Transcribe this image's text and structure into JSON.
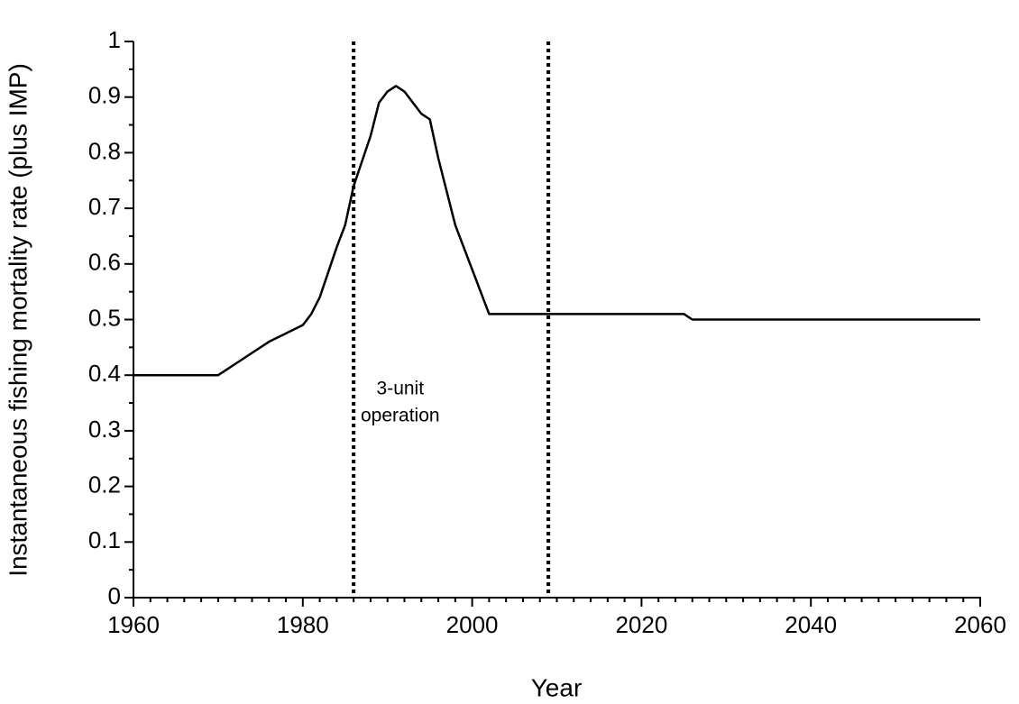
{
  "chart_data": {
    "type": "line",
    "xlabel": "Year",
    "ylabel": "Instantaneous fishing mortality rate (plus IMP)",
    "x": [
      1960,
      1970,
      1972,
      1976,
      1980,
      1981,
      1982,
      1984,
      1985,
      1986,
      1988,
      1989,
      1990,
      1991,
      1992,
      1994,
      1995,
      1996,
      1998,
      2000,
      2002,
      2010,
      2025,
      2026,
      2060
    ],
    "series": [
      {
        "color": "#000000",
        "values": [
          0.4,
          0.4,
          0.42,
          0.46,
          0.49,
          0.51,
          0.54,
          0.63,
          0.67,
          0.74,
          0.83,
          0.89,
          0.91,
          0.92,
          0.91,
          0.87,
          0.86,
          0.79,
          0.67,
          0.59,
          0.51,
          0.51,
          0.51,
          0.5,
          0.5
        ]
      }
    ],
    "xlim": [
      1960,
      2060
    ],
    "xticks": [
      1960,
      1980,
      2000,
      2020,
      2040,
      2060
    ],
    "ylim": [
      0,
      1
    ],
    "yticks": [
      0,
      0.1,
      0.2,
      0.3,
      0.4,
      0.5,
      0.6,
      0.7,
      0.8,
      0.9,
      1
    ],
    "vlines": [
      1986,
      2009
    ],
    "annotation": {
      "lines": [
        "3-unit",
        "operation"
      ],
      "x": 1991.5,
      "y": 0.35
    }
  }
}
